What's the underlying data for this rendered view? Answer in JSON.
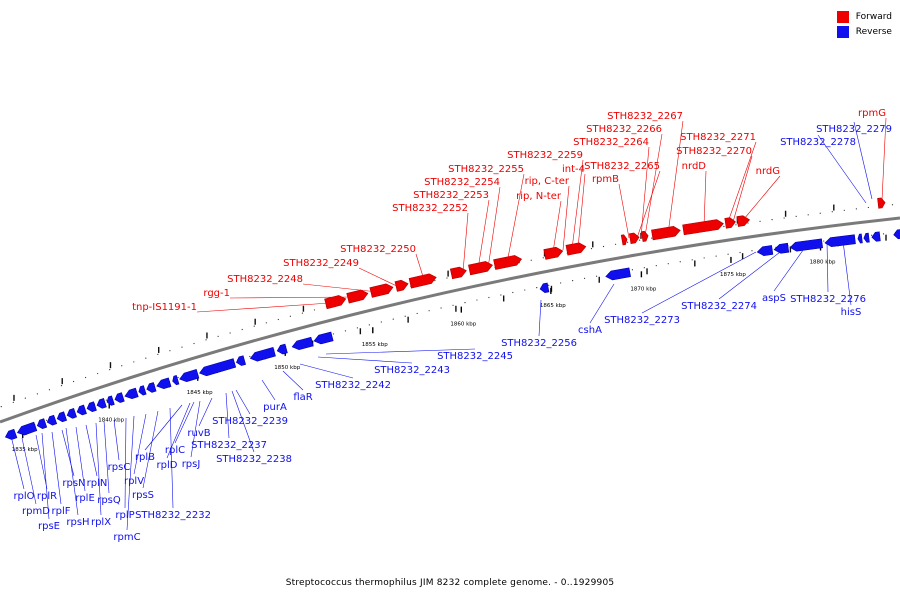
{
  "legend": {
    "forward_label": "Forward",
    "reverse_label": "Reverse",
    "forward_color": "#ee0000",
    "reverse_color": "#1010ee"
  },
  "caption": "Streptococcus thermophilus JIM 8232 complete genome. - 0..1929905",
  "ticks": [
    "1835 kbp",
    "1840 kbp",
    "1845 kbp",
    "1850 kbp",
    "1855 kbp",
    "1860 kbp",
    "1865 kbp",
    "1870 kbp",
    "1875 kbp",
    "1880 kbp"
  ],
  "forward_genes": [
    "tnp-IS1191-1",
    "rgg-1",
    "STH8232_2248",
    "STH8232_2249",
    "STH8232_2250",
    "STH8232_2252",
    "STH8232_2253",
    "STH8232_2254",
    "STH8232_2255",
    "rip, N-ter",
    "rip, C-ter",
    "STH8232_2259",
    "int-4",
    "rpmB",
    "STH8232_2265",
    "STH8232_2264",
    "STH8232_2266",
    "STH8232_2267",
    "nrdD",
    "STH8232_2270",
    "STH8232_2271",
    "nrdG",
    "rpmG"
  ],
  "reverse_genes": [
    "rplO",
    "rpmD",
    "rplR",
    "rpsE",
    "rplF",
    "rpsN",
    "rpsH",
    "rplE",
    "rplN",
    "rplX",
    "rpsQ",
    "rpsC",
    "rplP",
    "rpmC",
    "rplV",
    "rpsS",
    "STH8232_2232",
    "rplB",
    "rplD",
    "rplC",
    "rpsJ",
    "ruvB",
    "STH8232_2237",
    "STH8232_2238",
    "STH8232_2239",
    "purA",
    "flaR",
    "STH8232_2242",
    "STH8232_2243",
    "STH8232_2245",
    "STH8232_2256",
    "cshA",
    "STH8232_2273",
    "STH8232_2274",
    "aspS",
    "STH8232_2276",
    "hisS",
    "STH8232_2278",
    "STH8232_2279"
  ]
}
